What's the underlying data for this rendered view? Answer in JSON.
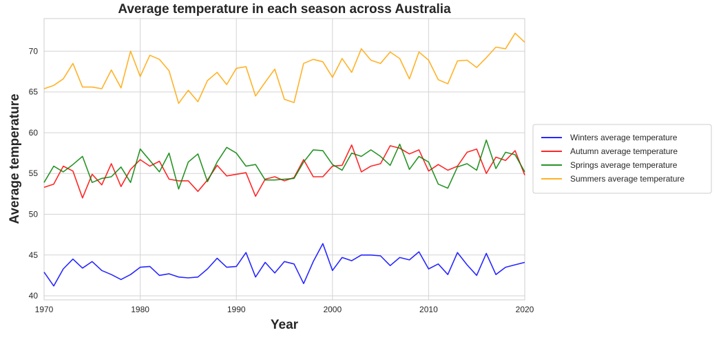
{
  "chart_data": {
    "type": "line",
    "title": "Average temperature in each season across Australia",
    "xlabel": "Year",
    "ylabel": "Average temperature",
    "xlim": [
      1970,
      2020
    ],
    "ylim": [
      39.5,
      74
    ],
    "xticks": [
      1970,
      1980,
      1990,
      2000,
      2010,
      2020
    ],
    "yticks": [
      40,
      45,
      50,
      55,
      60,
      65,
      70
    ],
    "grid": true,
    "legend_position": "right",
    "x": [
      1970,
      1971,
      1972,
      1973,
      1974,
      1975,
      1976,
      1977,
      1978,
      1979,
      1980,
      1981,
      1982,
      1983,
      1984,
      1985,
      1986,
      1987,
      1988,
      1989,
      1990,
      1991,
      1992,
      1993,
      1994,
      1995,
      1996,
      1997,
      1998,
      1999,
      2000,
      2001,
      2002,
      2003,
      2004,
      2005,
      2006,
      2007,
      2008,
      2009,
      2010,
      2011,
      2012,
      2013,
      2014,
      2015,
      2016,
      2017,
      2018,
      2019,
      2020
    ],
    "series": [
      {
        "name": "Winters average temperature",
        "color": "#0000ff",
        "values": [
          42.9,
          41.2,
          43.3,
          44.5,
          43.4,
          44.2,
          43.1,
          42.6,
          42.0,
          42.6,
          43.5,
          43.6,
          42.5,
          42.7,
          42.3,
          42.2,
          42.3,
          43.3,
          44.6,
          43.5,
          43.6,
          45.3,
          42.3,
          44.1,
          42.8,
          44.2,
          43.9,
          41.5,
          44.2,
          46.4,
          43.1,
          44.7,
          44.3,
          45.0,
          45.0,
          44.9,
          43.7,
          44.7,
          44.4,
          45.4,
          43.3,
          43.9,
          42.6,
          45.3,
          43.8,
          42.5,
          45.2,
          42.6,
          43.5,
          43.8,
          44.1
        ]
      },
      {
        "name": "Autumn average temperature",
        "color": "#ff0000",
        "values": [
          53.3,
          53.7,
          55.9,
          55.3,
          52.0,
          54.9,
          53.6,
          56.2,
          53.4,
          55.5,
          56.7,
          55.9,
          56.5,
          54.3,
          54.1,
          54.1,
          52.8,
          54.2,
          56.0,
          54.7,
          54.9,
          55.1,
          52.2,
          54.3,
          54.6,
          54.1,
          54.5,
          56.7,
          54.6,
          54.6,
          55.9,
          56.0,
          58.5,
          55.2,
          55.9,
          56.2,
          58.4,
          58.1,
          57.4,
          57.9,
          55.3,
          56.1,
          55.4,
          55.9,
          57.6,
          58.0,
          55.0,
          57.0,
          56.6,
          57.8,
          54.8
        ]
      },
      {
        "name": "Springs average temperature",
        "color": "#008000",
        "values": [
          53.9,
          55.9,
          55.2,
          56.1,
          57.1,
          53.9,
          54.4,
          54.6,
          55.8,
          53.9,
          58.0,
          56.6,
          55.2,
          57.5,
          53.1,
          56.4,
          57.4,
          54.0,
          56.4,
          58.2,
          57.5,
          55.9,
          56.1,
          54.2,
          54.2,
          54.3,
          54.4,
          56.4,
          57.9,
          57.8,
          56.1,
          55.4,
          57.5,
          57.1,
          57.9,
          57.1,
          56.0,
          58.6,
          55.5,
          57.1,
          56.4,
          53.7,
          53.2,
          55.8,
          56.2,
          55.4,
          59.1,
          55.6,
          57.6,
          57.3,
          55.2
        ]
      },
      {
        "name": "Summers average temperature",
        "color": "#ffa500",
        "values": [
          65.4,
          65.8,
          66.6,
          68.5,
          65.6,
          65.6,
          65.4,
          67.7,
          65.5,
          70.0,
          66.9,
          69.5,
          69.0,
          67.6,
          63.6,
          65.2,
          63.8,
          66.4,
          67.4,
          65.9,
          67.9,
          68.1,
          64.5,
          66.2,
          67.8,
          64.1,
          63.7,
          68.5,
          69.0,
          68.7,
          66.8,
          69.1,
          67.4,
          70.3,
          68.9,
          68.5,
          69.9,
          69.1,
          66.6,
          69.9,
          68.9,
          66.5,
          66.0,
          68.8,
          68.9,
          68.0,
          69.2,
          70.5,
          70.3,
          72.2,
          71.1
        ]
      }
    ]
  }
}
